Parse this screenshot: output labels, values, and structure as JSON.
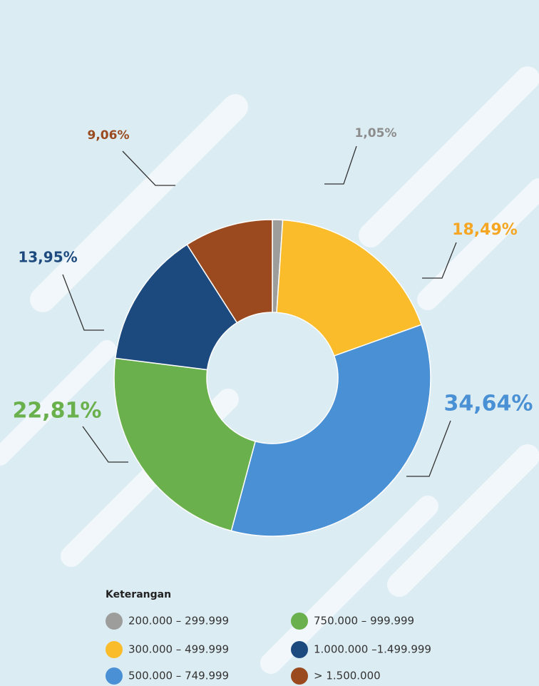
{
  "chart_data": {
    "type": "donut",
    "legend_title": "Keterangan",
    "categories": [
      "200.000 – 299.999",
      "300.000 – 499.999",
      "500.000 – 749.999",
      "750.000 – 999.999",
      "1.000.000 –1.499.999",
      "> 1.500.000"
    ],
    "values": [
      1.05,
      18.49,
      34.64,
      22.81,
      13.95,
      9.06
    ],
    "value_labels": [
      "1,05%",
      "18,49%",
      "34,64%",
      "22,81%",
      "13,95%",
      "9,06%"
    ],
    "colors": [
      "#9d9d9c",
      "#fbbc2b",
      "#4a90d4",
      "#6ab04c",
      "#1d4a7e",
      "#9a4a1e"
    ],
    "label_colors": [
      "#8c8c8c",
      "#f5a623",
      "#4a90d4",
      "#6ab04c",
      "#1d4a7e",
      "#9a4a1e"
    ]
  }
}
